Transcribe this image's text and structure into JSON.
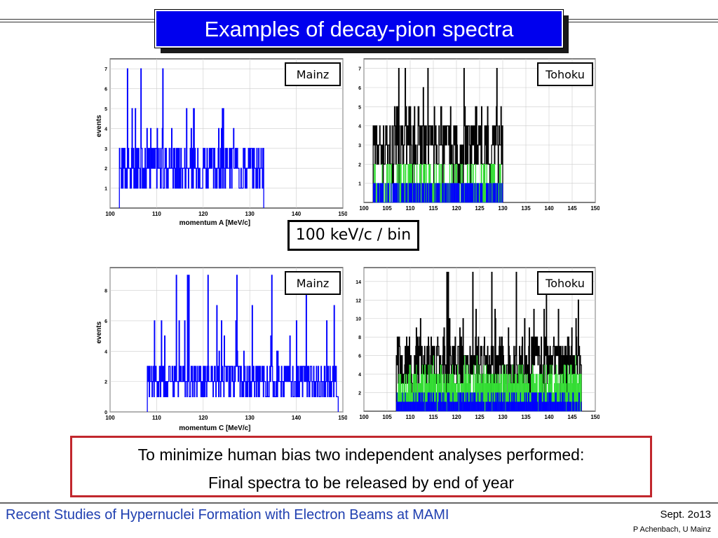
{
  "slide": {
    "title": "Examples of decay-pion spectra",
    "bin_label": "100 keV/c / bin",
    "note_line1": "To minimize human bias two independent analyses performed:",
    "note_line2": "Final spectra to be released by end of year",
    "footer_title": "Recent Studies of Hypernuclei Formation with Electron Beams at MAMI",
    "footer_date": "Sept. 2o13",
    "footer_author": "P Achenbach, U Mainz"
  },
  "colors": {
    "title_bg": "#0000ee",
    "hist_blue": "#0000ff",
    "hist_green": "#33dd33",
    "hist_black": "#000000",
    "note_border": "#c1272d",
    "footer_text": "#1f3fb0"
  },
  "chart_data": [
    {
      "type": "bar",
      "label": "Mainz",
      "xlabel": "momentum A [MeV/c]",
      "ylabel": "events",
      "xlim": [
        100,
        150
      ],
      "ylim": [
        0,
        7.5
      ],
      "bin_width": 0.1,
      "grid": true,
      "x_ticks": [
        "100",
        "110",
        "120",
        "130",
        "140",
        "150"
      ],
      "y_ticks": [
        "1",
        "2",
        "3",
        "4",
        "5",
        "6",
        "7"
      ],
      "series": [
        {
          "color": "#0000ff",
          "fill": false,
          "range": [
            102,
            133
          ],
          "min": 0,
          "max": 7,
          "typ": 2
        }
      ]
    },
    {
      "type": "bar",
      "label": "Tohoku",
      "xlabel": "",
      "ylabel": "",
      "xlim": [
        100,
        150
      ],
      "ylim": [
        0,
        7.5
      ],
      "bin_width": 0.1,
      "grid": true,
      "x_ticks": [
        "100",
        "105",
        "110",
        "115",
        "120",
        "125",
        "130",
        "135",
        "140",
        "145",
        "150"
      ],
      "y_ticks": [
        "1",
        "2",
        "3",
        "4",
        "5",
        "6",
        "7"
      ],
      "series": [
        {
          "color": "#000000",
          "fill": false,
          "range": [
            102,
            130
          ],
          "min": 1,
          "max": 7,
          "typ": 3
        },
        {
          "color": "#33dd33",
          "fill": true,
          "range": [
            102,
            130
          ],
          "min": 0,
          "max": 2,
          "typ": 1
        },
        {
          "color": "#0000ff",
          "fill": true,
          "range": [
            102,
            130
          ],
          "min": 0,
          "max": 1,
          "typ": 0.4
        }
      ]
    },
    {
      "type": "bar",
      "label": "Mainz",
      "xlabel": "momentum C [MeV/c]",
      "ylabel": "events",
      "xlim": [
        100,
        150
      ],
      "ylim": [
        0,
        9.5
      ],
      "bin_width": 0.1,
      "grid": true,
      "x_ticks": [
        "100",
        "110",
        "120",
        "130",
        "140",
        "150"
      ],
      "y_ticks": [
        "0",
        "2",
        "4",
        "6",
        "8"
      ],
      "series": [
        {
          "color": "#0000ff",
          "fill": false,
          "range": [
            108,
            149
          ],
          "min": 0,
          "max": 9,
          "typ": 2
        }
      ]
    },
    {
      "type": "bar",
      "label": "Tohoku",
      "xlabel": "",
      "ylabel": "",
      "xlim": [
        100,
        150
      ],
      "ylim": [
        0,
        15.5
      ],
      "bin_width": 0.1,
      "grid": true,
      "x_ticks": [
        "100",
        "105",
        "110",
        "115",
        "120",
        "125",
        "130",
        "135",
        "140",
        "145",
        "150"
      ],
      "y_ticks": [
        "2",
        "4",
        "6",
        "8",
        "10",
        "12",
        "14"
      ],
      "series": [
        {
          "color": "#000000",
          "fill": false,
          "range": [
            107,
            147
          ],
          "min": 1,
          "max": 15,
          "typ": 5
        },
        {
          "color": "#33dd33",
          "fill": true,
          "range": [
            107,
            147
          ],
          "min": 1,
          "max": 6,
          "typ": 3
        },
        {
          "color": "#0000ff",
          "fill": true,
          "range": [
            107,
            147
          ],
          "min": 0,
          "max": 2,
          "typ": 1
        }
      ]
    }
  ]
}
